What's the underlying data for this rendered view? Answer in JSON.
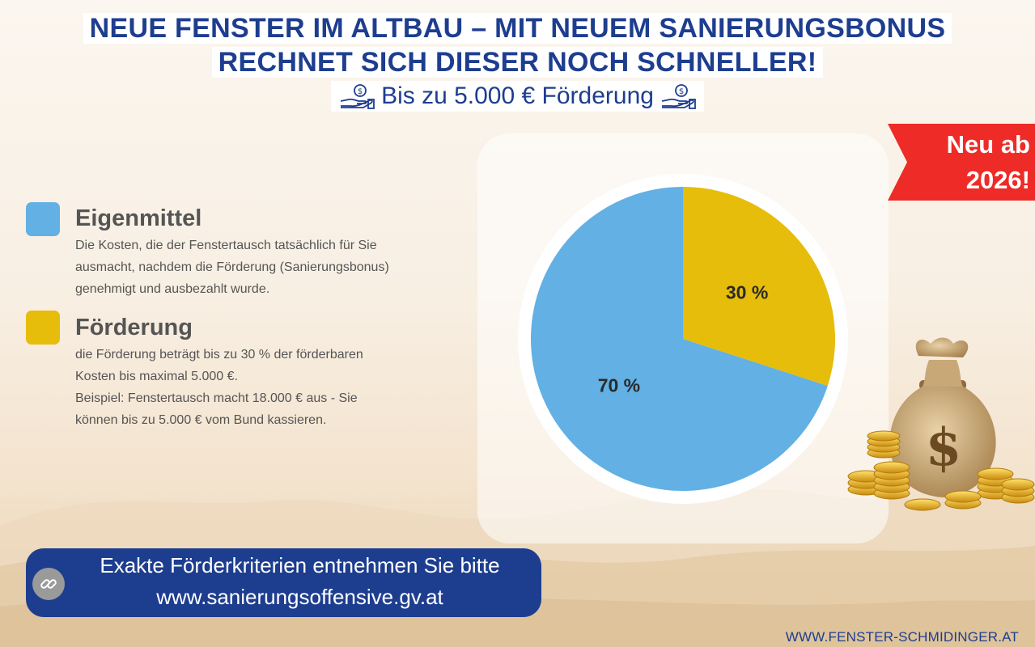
{
  "header": {
    "title_line1": "NEUE FENSTER IM ALTBAU – MIT NEUEM SANIERUNGSBONUS",
    "title_line2": "RECHNET SICH DIESER NOCH SCHNELLER!",
    "subtitle": "Bis zu 5.000 € Förderung"
  },
  "badge": {
    "line1": "Neu ab",
    "line2": "2026!"
  },
  "legend": [
    {
      "title": "Eigenmittel",
      "color": "#62b0e4",
      "lines": [
        "Die Kosten, die der Fenstertausch tatsächlich für Sie",
        "ausmacht, nachdem die Förderung (Sanierungsbonus)",
        "genehmigt und ausbezahlt wurde."
      ]
    },
    {
      "title": "Förderung",
      "color": "#e6bd0a",
      "lines": [
        "die Förderung beträgt bis zu 30 % der förderbaren",
        "Kosten bis maximal 5.000 €.",
        "Beispiel: Fenstertausch macht 18.000 € aus - Sie",
        "können bis zu 5.000 € vom Bund kassieren."
      ]
    }
  ],
  "chart_data": {
    "type": "pie",
    "title": "",
    "slices": [
      {
        "name": "Förderung",
        "value": 30,
        "label": "30 %",
        "color": "#e6bd0a"
      },
      {
        "name": "Eigenmittel",
        "value": 70,
        "label": "70 %",
        "color": "#62b0e4"
      }
    ],
    "start_angle": "12 o'clock, clockwise"
  },
  "banner": {
    "line1": "Exakte Förderkriterien entnehmen Sie bitte",
    "line2": "www.sanierungsoffensive.gv.at"
  },
  "footer": {
    "url": "WWW.FENSTER-SCHMIDINGER.AT"
  },
  "icons": {
    "money": "hand-money-icon",
    "link": "link-icon",
    "bag": "money-bag-icon"
  },
  "colors": {
    "brand_blue": "#1d3d8f",
    "badge_red": "#ee2b26"
  }
}
